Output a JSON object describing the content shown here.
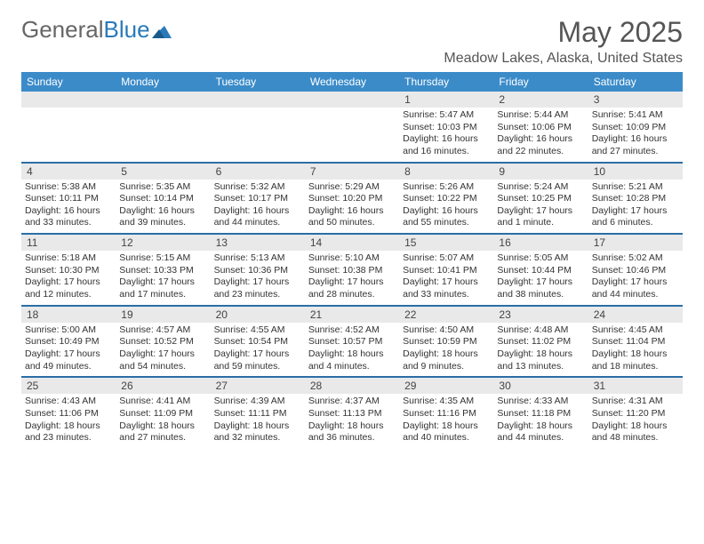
{
  "logo": {
    "text1": "General",
    "text2": "Blue"
  },
  "title": "May 2025",
  "location": "Meadow Lakes, Alaska, United States",
  "colors": {
    "header_bg": "#3b8bc9",
    "week_border": "#2b6ea5",
    "daynum_bg": "#e9e9e9",
    "text": "#333333"
  },
  "dow": [
    "Sunday",
    "Monday",
    "Tuesday",
    "Wednesday",
    "Thursday",
    "Friday",
    "Saturday"
  ],
  "weeks": [
    [
      null,
      null,
      null,
      null,
      {
        "n": "1",
        "sr": "Sunrise: 5:47 AM",
        "ss": "Sunset: 10:03 PM",
        "d1": "Daylight: 16 hours",
        "d2": "and 16 minutes."
      },
      {
        "n": "2",
        "sr": "Sunrise: 5:44 AM",
        "ss": "Sunset: 10:06 PM",
        "d1": "Daylight: 16 hours",
        "d2": "and 22 minutes."
      },
      {
        "n": "3",
        "sr": "Sunrise: 5:41 AM",
        "ss": "Sunset: 10:09 PM",
        "d1": "Daylight: 16 hours",
        "d2": "and 27 minutes."
      }
    ],
    [
      {
        "n": "4",
        "sr": "Sunrise: 5:38 AM",
        "ss": "Sunset: 10:11 PM",
        "d1": "Daylight: 16 hours",
        "d2": "and 33 minutes."
      },
      {
        "n": "5",
        "sr": "Sunrise: 5:35 AM",
        "ss": "Sunset: 10:14 PM",
        "d1": "Daylight: 16 hours",
        "d2": "and 39 minutes."
      },
      {
        "n": "6",
        "sr": "Sunrise: 5:32 AM",
        "ss": "Sunset: 10:17 PM",
        "d1": "Daylight: 16 hours",
        "d2": "and 44 minutes."
      },
      {
        "n": "7",
        "sr": "Sunrise: 5:29 AM",
        "ss": "Sunset: 10:20 PM",
        "d1": "Daylight: 16 hours",
        "d2": "and 50 minutes."
      },
      {
        "n": "8",
        "sr": "Sunrise: 5:26 AM",
        "ss": "Sunset: 10:22 PM",
        "d1": "Daylight: 16 hours",
        "d2": "and 55 minutes."
      },
      {
        "n": "9",
        "sr": "Sunrise: 5:24 AM",
        "ss": "Sunset: 10:25 PM",
        "d1": "Daylight: 17 hours",
        "d2": "and 1 minute."
      },
      {
        "n": "10",
        "sr": "Sunrise: 5:21 AM",
        "ss": "Sunset: 10:28 PM",
        "d1": "Daylight: 17 hours",
        "d2": "and 6 minutes."
      }
    ],
    [
      {
        "n": "11",
        "sr": "Sunrise: 5:18 AM",
        "ss": "Sunset: 10:30 PM",
        "d1": "Daylight: 17 hours",
        "d2": "and 12 minutes."
      },
      {
        "n": "12",
        "sr": "Sunrise: 5:15 AM",
        "ss": "Sunset: 10:33 PM",
        "d1": "Daylight: 17 hours",
        "d2": "and 17 minutes."
      },
      {
        "n": "13",
        "sr": "Sunrise: 5:13 AM",
        "ss": "Sunset: 10:36 PM",
        "d1": "Daylight: 17 hours",
        "d2": "and 23 minutes."
      },
      {
        "n": "14",
        "sr": "Sunrise: 5:10 AM",
        "ss": "Sunset: 10:38 PM",
        "d1": "Daylight: 17 hours",
        "d2": "and 28 minutes."
      },
      {
        "n": "15",
        "sr": "Sunrise: 5:07 AM",
        "ss": "Sunset: 10:41 PM",
        "d1": "Daylight: 17 hours",
        "d2": "and 33 minutes."
      },
      {
        "n": "16",
        "sr": "Sunrise: 5:05 AM",
        "ss": "Sunset: 10:44 PM",
        "d1": "Daylight: 17 hours",
        "d2": "and 38 minutes."
      },
      {
        "n": "17",
        "sr": "Sunrise: 5:02 AM",
        "ss": "Sunset: 10:46 PM",
        "d1": "Daylight: 17 hours",
        "d2": "and 44 minutes."
      }
    ],
    [
      {
        "n": "18",
        "sr": "Sunrise: 5:00 AM",
        "ss": "Sunset: 10:49 PM",
        "d1": "Daylight: 17 hours",
        "d2": "and 49 minutes."
      },
      {
        "n": "19",
        "sr": "Sunrise: 4:57 AM",
        "ss": "Sunset: 10:52 PM",
        "d1": "Daylight: 17 hours",
        "d2": "and 54 minutes."
      },
      {
        "n": "20",
        "sr": "Sunrise: 4:55 AM",
        "ss": "Sunset: 10:54 PM",
        "d1": "Daylight: 17 hours",
        "d2": "and 59 minutes."
      },
      {
        "n": "21",
        "sr": "Sunrise: 4:52 AM",
        "ss": "Sunset: 10:57 PM",
        "d1": "Daylight: 18 hours",
        "d2": "and 4 minutes."
      },
      {
        "n": "22",
        "sr": "Sunrise: 4:50 AM",
        "ss": "Sunset: 10:59 PM",
        "d1": "Daylight: 18 hours",
        "d2": "and 9 minutes."
      },
      {
        "n": "23",
        "sr": "Sunrise: 4:48 AM",
        "ss": "Sunset: 11:02 PM",
        "d1": "Daylight: 18 hours",
        "d2": "and 13 minutes."
      },
      {
        "n": "24",
        "sr": "Sunrise: 4:45 AM",
        "ss": "Sunset: 11:04 PM",
        "d1": "Daylight: 18 hours",
        "d2": "and 18 minutes."
      }
    ],
    [
      {
        "n": "25",
        "sr": "Sunrise: 4:43 AM",
        "ss": "Sunset: 11:06 PM",
        "d1": "Daylight: 18 hours",
        "d2": "and 23 minutes."
      },
      {
        "n": "26",
        "sr": "Sunrise: 4:41 AM",
        "ss": "Sunset: 11:09 PM",
        "d1": "Daylight: 18 hours",
        "d2": "and 27 minutes."
      },
      {
        "n": "27",
        "sr": "Sunrise: 4:39 AM",
        "ss": "Sunset: 11:11 PM",
        "d1": "Daylight: 18 hours",
        "d2": "and 32 minutes."
      },
      {
        "n": "28",
        "sr": "Sunrise: 4:37 AM",
        "ss": "Sunset: 11:13 PM",
        "d1": "Daylight: 18 hours",
        "d2": "and 36 minutes."
      },
      {
        "n": "29",
        "sr": "Sunrise: 4:35 AM",
        "ss": "Sunset: 11:16 PM",
        "d1": "Daylight: 18 hours",
        "d2": "and 40 minutes."
      },
      {
        "n": "30",
        "sr": "Sunrise: 4:33 AM",
        "ss": "Sunset: 11:18 PM",
        "d1": "Daylight: 18 hours",
        "d2": "and 44 minutes."
      },
      {
        "n": "31",
        "sr": "Sunrise: 4:31 AM",
        "ss": "Sunset: 11:20 PM",
        "d1": "Daylight: 18 hours",
        "d2": "and 48 minutes."
      }
    ]
  ]
}
